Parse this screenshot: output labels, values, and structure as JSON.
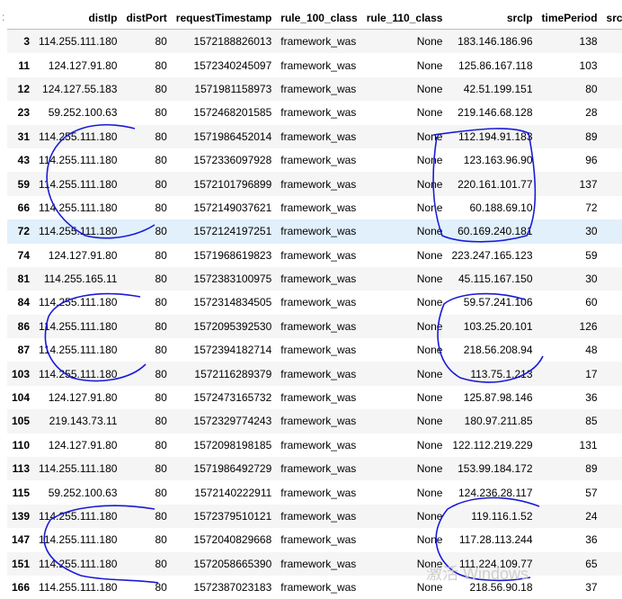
{
  "prompt": ":",
  "columns": [
    "",
    "distIp",
    "distPort",
    "requestTimestamp",
    "rule_100_class",
    "rule_110_class",
    "srcIp",
    "timePeriod",
    "srcl"
  ],
  "rows": [
    [
      "3",
      "114.255.111.180",
      "80",
      "1572188826013",
      "framework_was",
      "None",
      "183.146.186.96",
      "138",
      ""
    ],
    [
      "11",
      "124.127.91.80",
      "80",
      "1572340245097",
      "framework_was",
      "None",
      "125.86.167.118",
      "103",
      ""
    ],
    [
      "12",
      "124.127.55.183",
      "80",
      "1571981158973",
      "framework_was",
      "None",
      "42.51.199.151",
      "80",
      ""
    ],
    [
      "23",
      "59.252.100.63",
      "80",
      "1572468201585",
      "framework_was",
      "None",
      "219.146.68.128",
      "28",
      ""
    ],
    [
      "31",
      "114.255.111.180",
      "80",
      "1571986452014",
      "framework_was",
      "None",
      "112.194.91.183",
      "89",
      ""
    ],
    [
      "43",
      "114.255.111.180",
      "80",
      "1572336097928",
      "framework_was",
      "None",
      "123.163.96.90",
      "96",
      ""
    ],
    [
      "59",
      "114.255.111.180",
      "80",
      "1572101796899",
      "framework_was",
      "None",
      "220.161.101.77",
      "137",
      ""
    ],
    [
      "66",
      "114.255.111.180",
      "80",
      "1572149037621",
      "framework_was",
      "None",
      "60.188.69.10",
      "72",
      ""
    ],
    [
      "72",
      "114.255.111.180",
      "80",
      "1572124197251",
      "framework_was",
      "None",
      "60.169.240.181",
      "30",
      ""
    ],
    [
      "74",
      "124.127.91.80",
      "80",
      "1571968619823",
      "framework_was",
      "None",
      "223.247.165.123",
      "59",
      ""
    ],
    [
      "81",
      "114.255.165.11",
      "80",
      "1572383100975",
      "framework_was",
      "None",
      "45.115.167.150",
      "30",
      ""
    ],
    [
      "84",
      "114.255.111.180",
      "80",
      "1572314834505",
      "framework_was",
      "None",
      "59.57.241.106",
      "60",
      ""
    ],
    [
      "86",
      "114.255.111.180",
      "80",
      "1572095392530",
      "framework_was",
      "None",
      "103.25.20.101",
      "126",
      ""
    ],
    [
      "87",
      "114.255.111.180",
      "80",
      "1572394182714",
      "framework_was",
      "None",
      "218.56.208.94",
      "48",
      ""
    ],
    [
      "103",
      "114.255.111.180",
      "80",
      "1572116289379",
      "framework_was",
      "None",
      "113.75.1.213",
      "17",
      ""
    ],
    [
      "104",
      "124.127.91.80",
      "80",
      "1572473165732",
      "framework_was",
      "None",
      "125.87.98.146",
      "36",
      ""
    ],
    [
      "105",
      "219.143.73.11",
      "80",
      "1572329774243",
      "framework_was",
      "None",
      "180.97.211.85",
      "85",
      ""
    ],
    [
      "110",
      "124.127.91.80",
      "80",
      "1572098198185",
      "framework_was",
      "None",
      "122.112.219.229",
      "131",
      ""
    ],
    [
      "113",
      "114.255.111.180",
      "80",
      "1571986492729",
      "framework_was",
      "None",
      "153.99.184.172",
      "89",
      ""
    ],
    [
      "115",
      "59.252.100.63",
      "80",
      "1572140222911",
      "framework_was",
      "None",
      "124.236.28.117",
      "57",
      ""
    ],
    [
      "139",
      "114.255.111.180",
      "80",
      "1572379510121",
      "framework_was",
      "None",
      "119.116.1.52",
      "24",
      ""
    ],
    [
      "147",
      "114.255.111.180",
      "80",
      "1572040829668",
      "framework_was",
      "None",
      "117.28.113.244",
      "36",
      ""
    ],
    [
      "151",
      "114.255.111.180",
      "80",
      "1572058665390",
      "framework_was",
      "None",
      "111.224.109.77",
      "65",
      ""
    ],
    [
      "166",
      "114.255.111.180",
      "80",
      "1572387023183",
      "framework_was",
      "None",
      "218.56.90.18",
      "37",
      ""
    ]
  ],
  "hovered_row_index": "72",
  "watermark": "激活 Windows",
  "ink_color": "#1a1ad6"
}
